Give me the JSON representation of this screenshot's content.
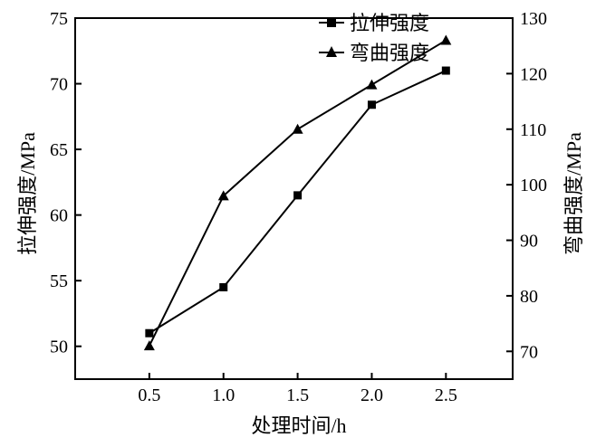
{
  "chart_data": {
    "type": "line",
    "xlabel": "处理时间/h",
    "ylabel_left": "拉伸强度/MPa",
    "ylabel_right": "弯曲强度/MPa",
    "x": [
      0.5,
      1.0,
      1.5,
      2.0,
      2.5
    ],
    "x_ticks": [
      "0.5",
      "1.0",
      "1.5",
      "2.0",
      "2.5"
    ],
    "xlim": [
      0.0,
      2.95
    ],
    "ylim_left": [
      47.5,
      75
    ],
    "ylim_right": [
      65,
      130
    ],
    "y_left_ticks": [
      "50",
      "55",
      "60",
      "65",
      "70",
      "75"
    ],
    "y_right_ticks": [
      "70",
      "80",
      "90",
      "100",
      "110",
      "120",
      "130"
    ],
    "legend_position": "top-center",
    "grid": false,
    "series": [
      {
        "name": "拉伸强度",
        "axis": "left",
        "marker": "square",
        "values": [
          51.0,
          54.5,
          61.5,
          68.4,
          71.0
        ]
      },
      {
        "name": "弯曲强度",
        "axis": "right",
        "marker": "triangle",
        "values": [
          71.0,
          98.0,
          110.0,
          118.0,
          126.0
        ]
      }
    ]
  }
}
